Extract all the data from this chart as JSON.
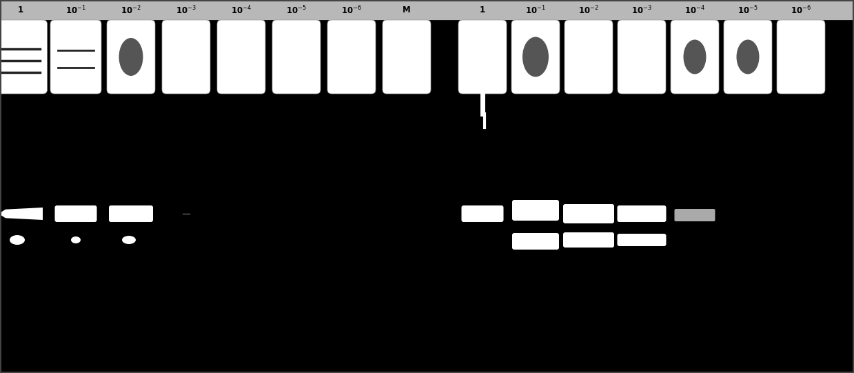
{
  "background_color": "#000000",
  "header_bg": "#b8b8b8",
  "band_color": "#ffffff",
  "text_color": "#000000",
  "fig_width": 12.39,
  "fig_height": 5.41,
  "dpi": 100,
  "labels_left": [
    "1",
    "10$^{-1}$",
    "10$^{-2}$",
    "10$^{-3}$",
    "10$^{-4}$",
    "10$^{-5}$",
    "10$^{-6}$",
    "M"
  ],
  "labels_right": [
    "1",
    "10$^{-1}$",
    "10$^{-2}$",
    "10$^{-3}$",
    "10$^{-4}$",
    "10$^{-5}$",
    "10$^{-6}$"
  ]
}
